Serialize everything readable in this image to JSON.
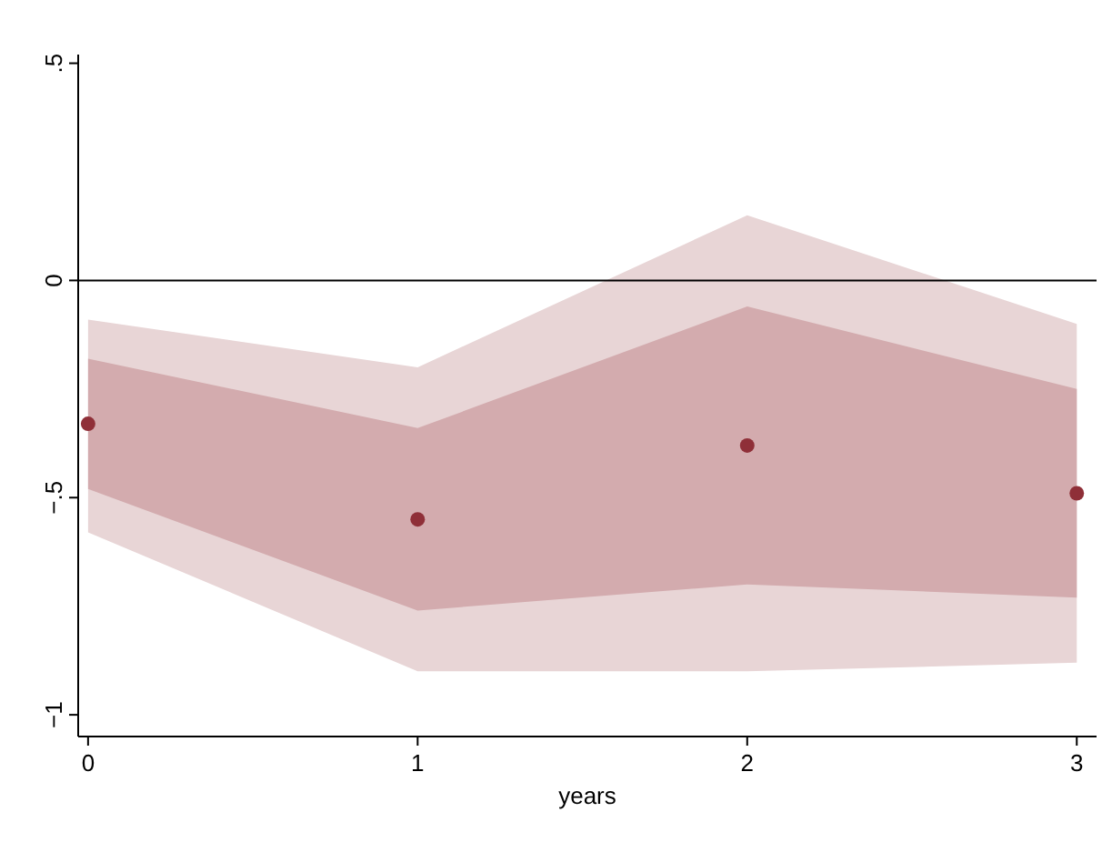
{
  "chart_data": {
    "type": "scatter",
    "xlabel": "years",
    "x": [
      0,
      1,
      2,
      3
    ],
    "series": [
      {
        "type": "area",
        "color": "#e8d5d6",
        "values": [
          null,
          null,
          null,
          null
        ],
        "lower": [
          -0.58,
          -0.9,
          -0.9,
          -0.88
        ],
        "upper": [
          -0.09,
          -0.2,
          0.15,
          -0.1
        ]
      },
      {
        "type": "area",
        "color": "#d3abae",
        "values": [
          null,
          null,
          null,
          null
        ],
        "lower": [
          -0.48,
          -0.76,
          -0.7,
          -0.73
        ],
        "upper": [
          -0.18,
          -0.34,
          -0.06,
          -0.25
        ]
      },
      {
        "color": "#8f2f38",
        "values": [
          -0.33,
          -0.55,
          -0.38,
          -0.49
        ]
      }
    ],
    "xlim": [
      -0.03,
      3.06
    ],
    "xticks": [
      0,
      1,
      2,
      3
    ],
    "ylim": [
      -1.05,
      0.52
    ],
    "yticks": [
      {
        "value": -1,
        "label": "−1"
      },
      {
        "value": -0.5,
        "label": "−.5"
      },
      0,
      {
        "value": 0.5,
        "label": ".5"
      }
    ],
    "ref_lines": [
      {
        "axis": "y",
        "value": 0,
        "color": "#000000"
      }
    ],
    "marker": "circle",
    "grid": false
  }
}
